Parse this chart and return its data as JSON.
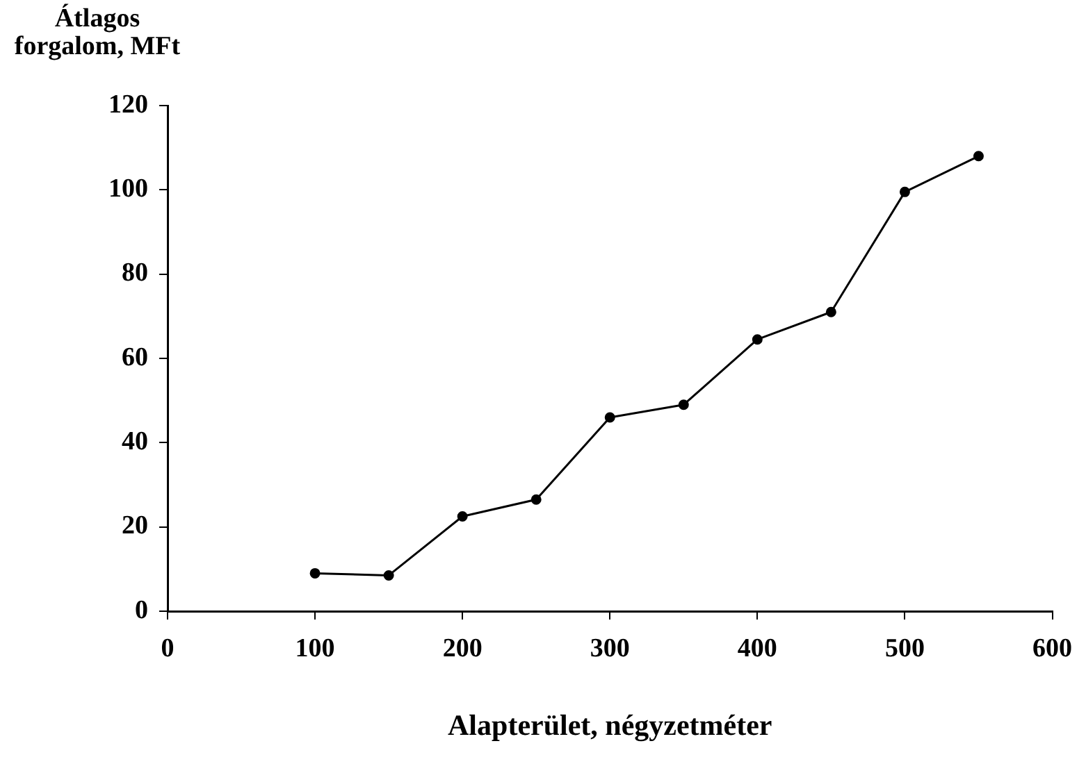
{
  "chart_data": {
    "type": "line",
    "xlabel": "Alapterület, négyzetméter",
    "ylabel": "Átlagos forgalom, MFt",
    "x": [
      100,
      150,
      200,
      250,
      300,
      350,
      400,
      450,
      500,
      550
    ],
    "series": [
      {
        "color": "#000000",
        "values": [
          9,
          8.5,
          22.5,
          26.5,
          46,
          49,
          64.5,
          71,
          99.5,
          108
        ]
      }
    ],
    "xlim": [
      0,
      600
    ],
    "xticks": [
      0,
      100,
      200,
      300,
      400,
      500,
      600
    ],
    "ylim": [
      0,
      120
    ],
    "yticks": [
      0,
      20,
      40,
      60,
      80,
      100,
      120
    ],
    "grid": false,
    "legend": false,
    "marker": "circle",
    "line_style": "solid"
  }
}
